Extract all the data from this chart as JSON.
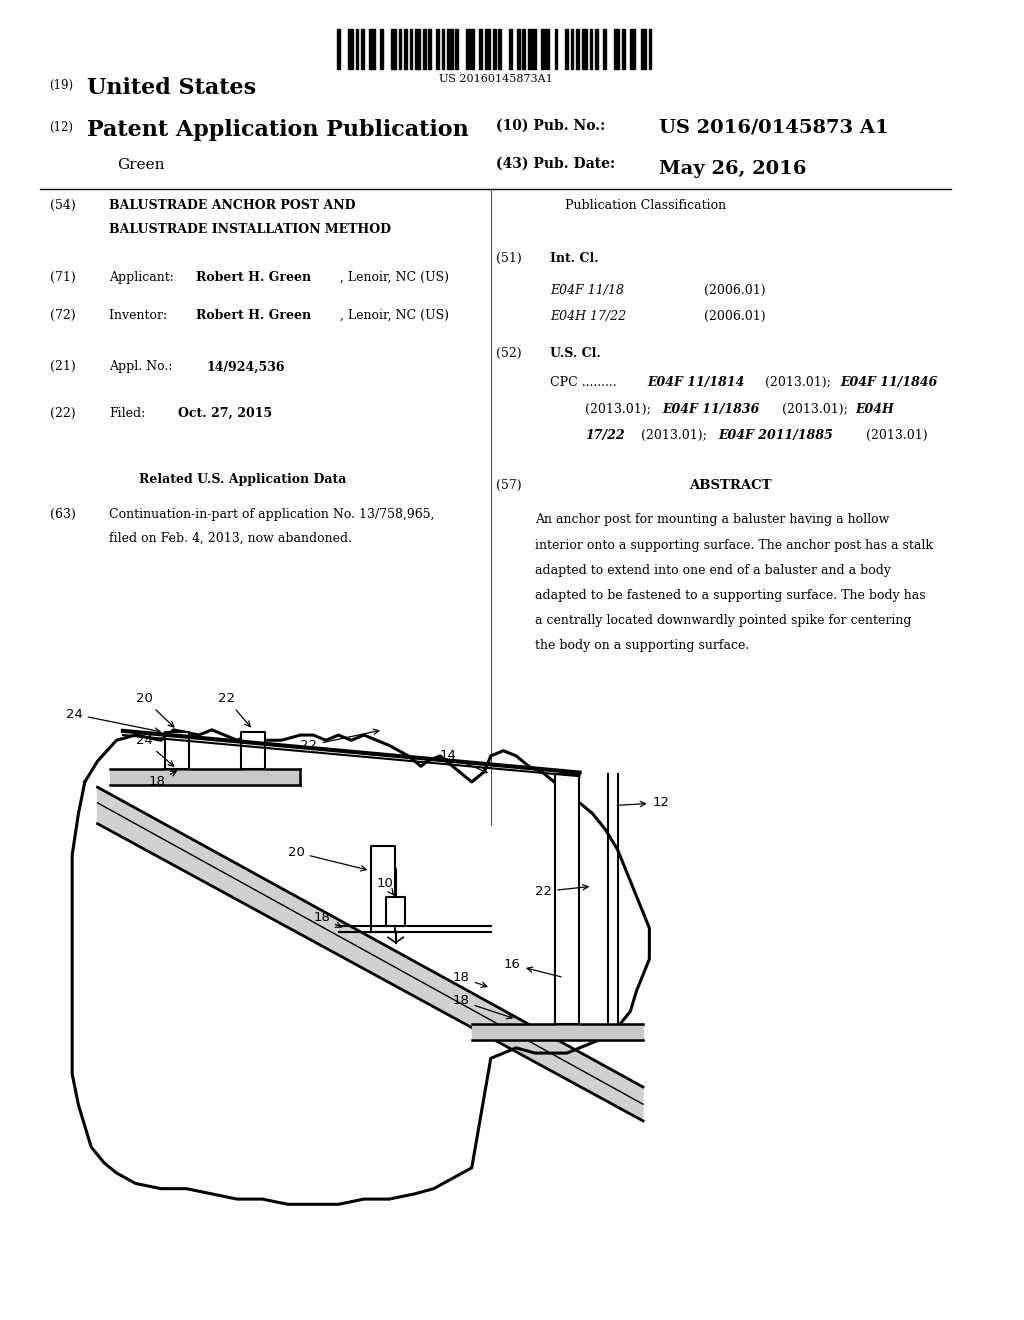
{
  "background_color": "#ffffff",
  "barcode_text": "US 20160145873A1",
  "patent_number_label": "(19)",
  "patent_number_title": "United States",
  "pub_type_label": "(12)",
  "pub_type_title": "Patent Application Publication",
  "inventor_name": "Green",
  "pub_no_label": "(10) Pub. No.:",
  "pub_no_value": "US 2016/0145873 A1",
  "pub_date_label": "(43) Pub. Date:",
  "pub_date_value": "May 26, 2016",
  "field_54_line1": "BALUSTRADE ANCHOR POST AND",
  "field_54_line2": "BALUSTRADE INSTALLATION METHOD",
  "field_71_applicant_label": "Applicant: ",
  "field_71_applicant_bold": "Robert H. Green",
  "field_71_applicant_rest": ", Lenoir, NC (US)",
  "field_72_inventor_label": "Inventor:  ",
  "field_72_inventor_bold": "Robert H. Green",
  "field_72_inventor_rest": ", Lenoir, NC (US)",
  "field_21_label": "Appl. No.: ",
  "field_21_value": "14/924,536",
  "field_22_label": "Filed:",
  "field_22_value": "Oct. 27, 2015",
  "related_header": "Related U.S. Application Data",
  "field_63_line1": "Continuation-in-part of application No. 13/758,965,",
  "field_63_line2": "filed on Feb. 4, 2013, now abandoned.",
  "pub_class_header": "Publication Classification",
  "field_51_title": "Int. Cl.",
  "field_51_e1": "E04F 11/18",
  "field_51_e1_date": "(2006.01)",
  "field_51_e2": "E04H 17/22",
  "field_51_e2_date": "(2006.01)",
  "field_52_title": "U.S. Cl.",
  "field_57_title": "ABSTRACT",
  "abstract_lines": [
    "An anchor post for mounting a baluster having a hollow",
    "interior onto a supporting surface. The anchor post has a stalk",
    "adapted to extend into one end of a baluster and a body",
    "adapted to be fastened to a supporting surface. The body has",
    "a centrally located downwardly pointed spike for centering",
    "the body on a supporting surface."
  ]
}
